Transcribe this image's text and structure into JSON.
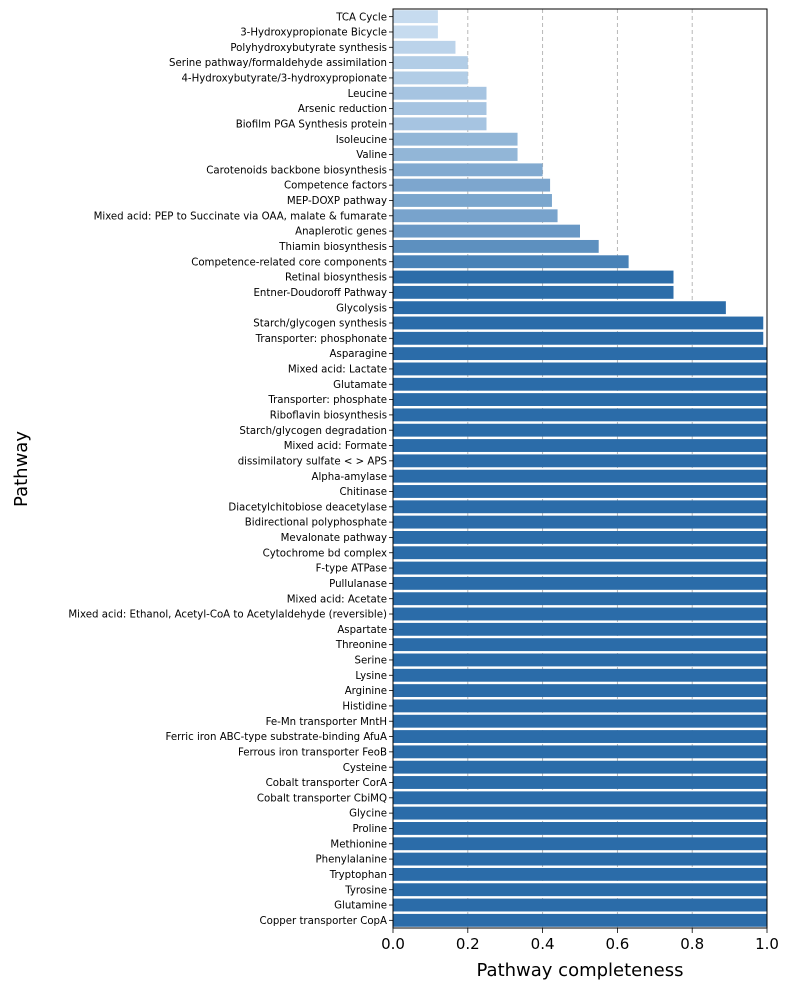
{
  "chart_data": {
    "type": "bar",
    "orientation": "horizontal",
    "xlabel": "Pathway completeness",
    "ylabel": "Pathway",
    "xlim": [
      0,
      1
    ],
    "xticks": [
      "0.0",
      "0.2",
      "0.4",
      "0.6",
      "0.8",
      "1.0"
    ],
    "xtick_values": [
      0,
      0.2,
      0.4,
      0.6,
      0.8,
      1.0
    ],
    "grid": "x-dashed",
    "colors": {
      "light": "#c6dbef",
      "dark": "#2b6ca9",
      "grid": "#b0b0b0"
    },
    "categories": [
      "TCA Cycle",
      "3-Hydroxypropionate Bicycle",
      "Polyhydroxybutyrate synthesis",
      "Serine pathway/formaldehyde assimilation",
      "4-Hydroxybutyrate/3-hydroxypropionate",
      "Leucine",
      "Arsenic reduction",
      "Biofilm PGA Synthesis protein",
      "Isoleucine",
      "Valine",
      "Carotenoids backbone biosynthesis",
      "Competence factors",
      "MEP-DOXP pathway",
      "Mixed acid: PEP to Succinate via OAA, malate & fumarate",
      "Anaplerotic genes",
      "Thiamin biosynthesis",
      "Competence-related core components",
      "Retinal biosynthesis",
      "Entner-Doudoroff Pathway",
      "Glycolysis",
      "Starch/glycogen synthesis",
      "Transporter: phosphonate",
      "Asparagine",
      "Mixed acid: Lactate",
      "Glutamate",
      "Transporter: phosphate",
      "Riboflavin biosynthesis",
      "Starch/glycogen degradation",
      "Mixed acid: Formate",
      "dissimilatory sulfate < > APS",
      "Alpha-amylase",
      "Chitinase",
      "Diacetylchitobiose deacetylase",
      "Bidirectional polyphosphate",
      "Mevalonate pathway",
      "Cytochrome bd complex",
      "F-type ATPase",
      "Pullulanase",
      "Mixed acid: Acetate",
      "Mixed acid: Ethanol, Acetyl-CoA to Acetylaldehyde (reversible)",
      "Aspartate",
      "Threonine",
      "Serine",
      "Lysine",
      "Arginine",
      "Histidine",
      "Fe-Mn transporter MntH",
      "Ferric iron ABC-type substrate-binding AfuA",
      "Ferrous iron transporter FeoB",
      "Cysteine",
      "Cobalt transporter CorA",
      "Cobalt transporter CbiMQ",
      "Glycine",
      "Proline",
      "Methionine",
      "Phenylalanine",
      "Tryptophan",
      "Tyrosine",
      "Glutamine",
      "Copper transporter CopA"
    ],
    "values": [
      0.12,
      0.12,
      0.167,
      0.2,
      0.2,
      0.25,
      0.25,
      0.25,
      0.333,
      0.333,
      0.4,
      0.42,
      0.425,
      0.44,
      0.5,
      0.55,
      0.63,
      0.75,
      0.75,
      0.89,
      0.99,
      0.99,
      1,
      1,
      1,
      1,
      1,
      1,
      1,
      1,
      1,
      1,
      1,
      1,
      1,
      1,
      1,
      1,
      1,
      1,
      1,
      1,
      1,
      1,
      1,
      1,
      1,
      1,
      1,
      1,
      1,
      1,
      1,
      1,
      1,
      1,
      1,
      1,
      1,
      1
    ]
  }
}
